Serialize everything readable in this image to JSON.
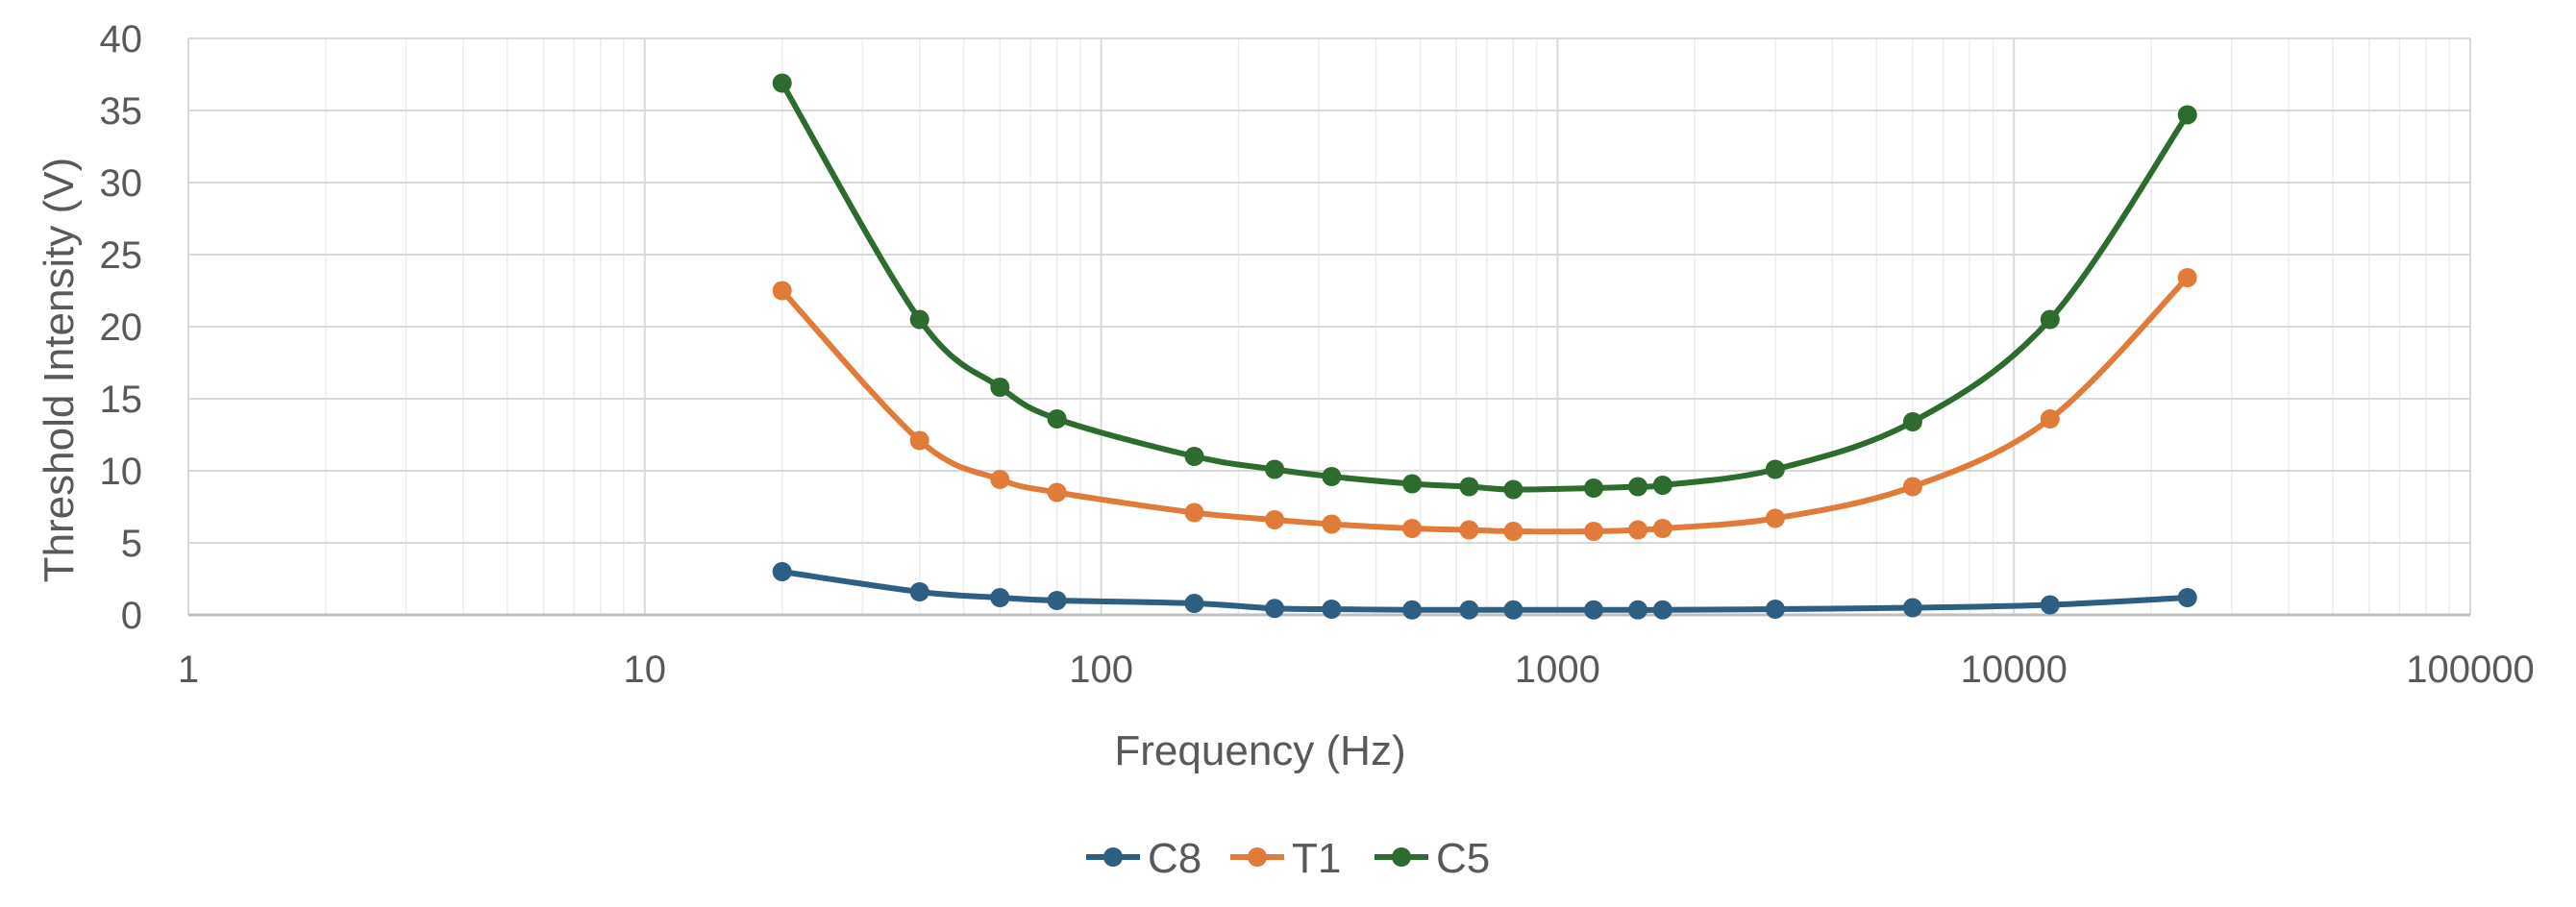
{
  "chart_data": {
    "type": "line",
    "title": "",
    "xlabel": "Frequency (Hz)",
    "ylabel": "Threshold Intensity (V)",
    "x_scale": "log",
    "xlim": [
      1,
      100000
    ],
    "ylim": [
      0,
      40
    ],
    "x_ticks": [
      "1",
      "10",
      "100",
      "1000",
      "10000",
      "100000"
    ],
    "y_ticks": [
      "0",
      "5",
      "10",
      "15",
      "20",
      "25",
      "30",
      "35",
      "40"
    ],
    "grid": true,
    "minor_grid": true,
    "smooth": true,
    "legend_position": "bottom",
    "x": [
      20,
      40,
      60,
      80,
      160,
      240,
      320,
      480,
      640,
      800,
      1200,
      1500,
      1700,
      3000,
      6000,
      12000,
      24000
    ],
    "series": [
      {
        "name": "C8",
        "color": "#2E5E82",
        "values": [
          3.0,
          1.6,
          1.2,
          1.0,
          0.8,
          0.45,
          0.4,
          0.35,
          0.35,
          0.35,
          0.35,
          0.35,
          0.35,
          0.4,
          0.5,
          0.7,
          1.2
        ]
      },
      {
        "name": "T1",
        "color": "#E07B39",
        "values": [
          22.5,
          12.1,
          9.4,
          8.5,
          7.1,
          6.6,
          6.3,
          6.0,
          5.9,
          5.8,
          5.8,
          5.9,
          6.0,
          6.7,
          8.9,
          13.6,
          23.4
        ]
      },
      {
        "name": "C5",
        "color": "#2E6B2E",
        "values": [
          36.9,
          20.5,
          15.8,
          13.6,
          11.0,
          10.1,
          9.6,
          9.1,
          8.9,
          8.7,
          8.8,
          8.9,
          9.0,
          10.1,
          13.4,
          20.5,
          34.7
        ]
      }
    ]
  }
}
